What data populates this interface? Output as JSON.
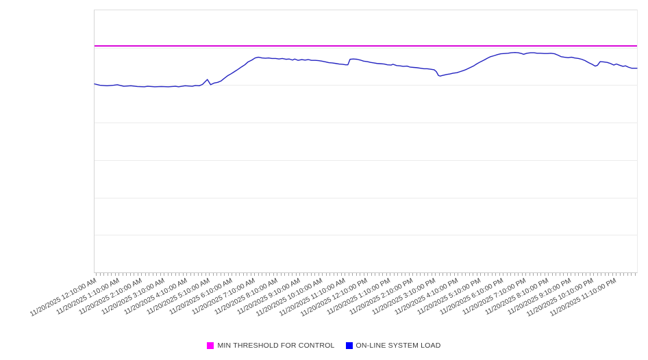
{
  "chart_data": {
    "type": "line",
    "title": "",
    "xlabel": "",
    "ylabel": "",
    "x_axis": {
      "labels": [
        "11/20/2025 12:10:00 AM",
        "11/20/2025 1:10:00 AM",
        "11/20/2025 2:10:00 AM",
        "11/20/2025 3:10:00 AM",
        "11/20/2025 4:10:00 AM",
        "11/20/2025 5:10:00 AM",
        "11/20/2025 6:10:00 AM",
        "11/20/2025 7:10:00 AM",
        "11/20/2025 8:10:00 AM",
        "11/20/2025 9:10:00 AM",
        "11/20/2025 10:10:00 AM",
        "11/20/2025 11:10:00 AM",
        "11/20/2025 12:10:00 PM",
        "11/20/2025 1:10:00 PM",
        "11/20/2025 2:10:00 PM",
        "11/20/2025 3:10:00 PM",
        "11/20/2025 4:10:00 PM",
        "11/20/2025 5:10:00 PM",
        "11/20/2025 6:10:00 PM",
        "11/20/2025 7:10:00 PM",
        "11/20/2025 8:10:00 PM",
        "11/20/2025 9:10:00 PM",
        "11/20/2025 10:10:00 PM",
        "11/20/2025 11:10:00 PM"
      ],
      "minor_tick_count": 144,
      "minor_tick_interval_minutes": 10,
      "label_rotation_deg": -28
    },
    "y_axis": {
      "labels_visible": false,
      "ylim": [
        0,
        100
      ],
      "gridline_divisions": 7,
      "grid": true
    },
    "legend_position": "bottom",
    "series": [
      {
        "name": "MIN THRESHOLD FOR CONTROL",
        "type": "threshold",
        "value": 86.4,
        "line_color": "#d800d8",
        "legend_color": "#ff00ff",
        "stroke_width": 2
      },
      {
        "name": "ON-LINE SYSTEM LOAD",
        "type": "line",
        "line_color": "#2222c0",
        "legend_color": "#0000ff",
        "stroke_width": 1.4,
        "points": [
          [
            0,
            71.9
          ],
          [
            1,
            71.4
          ],
          [
            2.3,
            71.2
          ],
          [
            3.5,
            71.4
          ],
          [
            4.2,
            71.6
          ],
          [
            5.4,
            71
          ],
          [
            6.7,
            71.2
          ],
          [
            7.9,
            70.9
          ],
          [
            9.2,
            70.8
          ],
          [
            9.8,
            71
          ],
          [
            11.1,
            70.8
          ],
          [
            12.3,
            70.9
          ],
          [
            13.6,
            70.8
          ],
          [
            14.9,
            71
          ],
          [
            15.5,
            70.8
          ],
          [
            16.7,
            71.2
          ],
          [
            18,
            71
          ],
          [
            18.6,
            71.3
          ],
          [
            19.3,
            71.2
          ],
          [
            19.9,
            71.7
          ],
          [
            20.8,
            73.6
          ],
          [
            21.4,
            71.6
          ],
          [
            22,
            72.2
          ],
          [
            22.7,
            72.5
          ],
          [
            23.3,
            73
          ],
          [
            23.9,
            74
          ],
          [
            24.6,
            75.1
          ],
          [
            25.2,
            75.8
          ],
          [
            25.8,
            76.6
          ],
          [
            26.4,
            77.4
          ],
          [
            27.1,
            78.4
          ],
          [
            27.7,
            79.2
          ],
          [
            28.3,
            80.3
          ],
          [
            29,
            81
          ],
          [
            29.6,
            81.8
          ],
          [
            30.2,
            82.1
          ],
          [
            30.9,
            81.8
          ],
          [
            31.5,
            81.7
          ],
          [
            32.1,
            81.8
          ],
          [
            32.7,
            81.6
          ],
          [
            33.4,
            81.6
          ],
          [
            34,
            81.4
          ],
          [
            34.6,
            81.6
          ],
          [
            35.3,
            81.3
          ],
          [
            35.9,
            81.4
          ],
          [
            36.5,
            81
          ],
          [
            36.9,
            81.4
          ],
          [
            37.5,
            80.9
          ],
          [
            38.2,
            81.2
          ],
          [
            38.8,
            81
          ],
          [
            39.4,
            81.2
          ],
          [
            40,
            80.9
          ],
          [
            40.7,
            80.9
          ],
          [
            41.3,
            80.8
          ],
          [
            41.9,
            80.6
          ],
          [
            42.6,
            80.3
          ],
          [
            43.2,
            80
          ],
          [
            43.8,
            79.9
          ],
          [
            44.5,
            79.7
          ],
          [
            45.1,
            79.5
          ],
          [
            45.7,
            79.4
          ],
          [
            46.3,
            79.2
          ],
          [
            46.7,
            79.2
          ],
          [
            47.1,
            81.3
          ],
          [
            47.7,
            81.4
          ],
          [
            48.4,
            81.3
          ],
          [
            49,
            81
          ],
          [
            49.6,
            80.6
          ],
          [
            50.3,
            80.4
          ],
          [
            50.9,
            80.1
          ],
          [
            51.5,
            79.9
          ],
          [
            52.1,
            79.7
          ],
          [
            52.8,
            79.6
          ],
          [
            53.4,
            79.5
          ],
          [
            54,
            79.2
          ],
          [
            54.7,
            79.1
          ],
          [
            55,
            79.4
          ],
          [
            55.7,
            78.9
          ],
          [
            56.3,
            78.8
          ],
          [
            56.9,
            78.6
          ],
          [
            57.6,
            78.7
          ],
          [
            58.2,
            78.3
          ],
          [
            58.8,
            78.2
          ],
          [
            59.4,
            78.1
          ],
          [
            60.1,
            77.9
          ],
          [
            60.7,
            77.7
          ],
          [
            61.3,
            77.7
          ],
          [
            62,
            77.5
          ],
          [
            62.6,
            77.3
          ],
          [
            63,
            76.6
          ],
          [
            63.4,
            75.1
          ],
          [
            63.7,
            74.9
          ],
          [
            64.1,
            75.1
          ],
          [
            64.5,
            75.3
          ],
          [
            64.9,
            75.5
          ],
          [
            65.5,
            75.7
          ],
          [
            66.1,
            76
          ],
          [
            66.8,
            76.2
          ],
          [
            67.4,
            76.6
          ],
          [
            68,
            77
          ],
          [
            68.6,
            77.5
          ],
          [
            69.3,
            78.2
          ],
          [
            69.9,
            78.8
          ],
          [
            70.5,
            79.6
          ],
          [
            71.2,
            80.4
          ],
          [
            71.8,
            81
          ],
          [
            72.4,
            81.7
          ],
          [
            73,
            82.3
          ],
          [
            73.7,
            82.7
          ],
          [
            74.3,
            83.1
          ],
          [
            74.9,
            83.4
          ],
          [
            75.6,
            83.5
          ],
          [
            76.2,
            83.6
          ],
          [
            76.8,
            83.8
          ],
          [
            77.5,
            83.9
          ],
          [
            78.1,
            83.8
          ],
          [
            78.7,
            83.5
          ],
          [
            79.1,
            83.2
          ],
          [
            79.7,
            83.6
          ],
          [
            80.4,
            83.8
          ],
          [
            81,
            83.8
          ],
          [
            81.6,
            83.6
          ],
          [
            82.2,
            83.6
          ],
          [
            82.9,
            83.5
          ],
          [
            83.5,
            83.5
          ],
          [
            84.1,
            83.6
          ],
          [
            84.8,
            83.4
          ],
          [
            85.4,
            82.9
          ],
          [
            86,
            82.3
          ],
          [
            86.6,
            82.1
          ],
          [
            87.3,
            81.9
          ],
          [
            87.9,
            82.1
          ],
          [
            88.5,
            81.8
          ],
          [
            89.2,
            81.6
          ],
          [
            89.8,
            81.3
          ],
          [
            90.4,
            80.8
          ],
          [
            91.1,
            80
          ],
          [
            91.7,
            79.4
          ],
          [
            92.3,
            78.7
          ],
          [
            92.7,
            79
          ],
          [
            93.2,
            80.4
          ],
          [
            93.8,
            80.3
          ],
          [
            94.5,
            80.1
          ],
          [
            95.1,
            79.7
          ],
          [
            95.7,
            79.1
          ],
          [
            96.2,
            79.5
          ],
          [
            96.7,
            79.1
          ],
          [
            97.4,
            78.6
          ],
          [
            97.9,
            78.8
          ],
          [
            98.4,
            78.3
          ],
          [
            99,
            77.9
          ],
          [
            99.5,
            77.9
          ],
          [
            100,
            77.9
          ]
        ]
      }
    ],
    "legend": [
      {
        "label": "MIN THRESHOLD FOR CONTROL",
        "color": "#ff00ff"
      },
      {
        "label": "ON-LINE SYSTEM LOAD",
        "color": "#0000ff"
      }
    ]
  }
}
